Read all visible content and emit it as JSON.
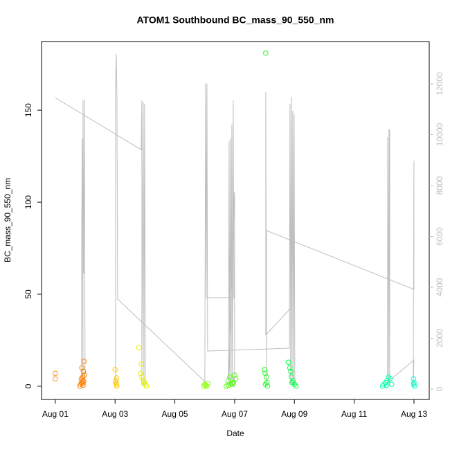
{
  "chart_data": {
    "type": "scatter",
    "title": "ATOM1 Southbound BC_mass_90_550_nm",
    "x_label": "Date",
    "y_label": "BC_mass_90_550_nm",
    "xlim": [
      -0.46,
      12.51
    ],
    "ylim": [
      -7.2,
      187.3
    ],
    "y2lim": [
      -408,
      13660
    ],
    "xticks": [
      {
        "value": 0,
        "label": "Aug 01"
      },
      {
        "value": 2,
        "label": "Aug 03"
      },
      {
        "value": 4,
        "label": "Aug 05"
      },
      {
        "value": 6,
        "label": "Aug 07"
      },
      {
        "value": 8,
        "label": "Aug 09"
      },
      {
        "value": 10,
        "label": "Aug 11"
      },
      {
        "value": 12,
        "label": "Aug 13"
      }
    ],
    "yticks": [
      0,
      50,
      100,
      150
    ],
    "y2ticks": [
      0,
      2000,
      4000,
      6000,
      8000,
      10000,
      12000
    ],
    "y2_tick_color": "#bebebe",
    "series": [
      {
        "color": "#ff8c1a",
        "x": [
          0,
          0
        ],
        "values": [
          7,
          4
        ]
      },
      {
        "color": "#ff8000",
        "x": [
          0.82,
          0.85,
          0.88,
          0.9,
          0.92,
          0.94,
          0.96,
          0.98,
          0.87,
          0.91,
          0.95,
          0.93,
          0.89
        ],
        "values": [
          0,
          1,
          2,
          3,
          5,
          8,
          13.5,
          6,
          4,
          1.5,
          2.5,
          0.5,
          10
        ]
      },
      {
        "color": "#ffcc00",
        "x": [
          2.0,
          2.02,
          2.04,
          2.06,
          2.03,
          2.05
        ],
        "values": [
          9,
          3,
          1,
          0,
          2,
          4.5
        ]
      },
      {
        "color": "#e6f000",
        "x": [
          2.8,
          2.85,
          2.9,
          2.95,
          3.0,
          3.05,
          2.88,
          2.98
        ],
        "values": [
          21,
          7,
          5,
          3,
          1,
          0,
          12,
          2
        ]
      },
      {
        "color": "#88ff00",
        "x": [
          4.97,
          5.0,
          5.03,
          5.06,
          5.1
        ],
        "values": [
          0,
          1,
          0.5,
          0,
          1.5
        ]
      },
      {
        "color": "#4cff00",
        "x": [
          5.72,
          5.78,
          5.84,
          5.9,
          5.96,
          6.0,
          6.04,
          5.8,
          5.93
        ],
        "values": [
          0,
          3,
          5,
          1,
          2,
          6,
          4,
          0.5,
          1.5
        ]
      },
      {
        "color": "#22ff22",
        "x": [
          7.04,
          7.0,
          7.02,
          7.06,
          7.08,
          7.1,
          7.03
        ],
        "values": [
          181,
          9,
          7,
          5,
          2,
          0,
          1
        ]
      },
      {
        "color": "#00ff44",
        "x": [
          7.8,
          7.85,
          7.88,
          7.9,
          7.95,
          8.0,
          8.05,
          7.92
        ],
        "values": [
          13,
          10,
          8,
          5,
          3,
          1,
          0,
          2
        ]
      },
      {
        "color": "#00ffaa",
        "x": [
          10.95,
          11.0,
          11.05,
          11.1,
          11.15,
          11.2,
          11.25,
          11.08
        ],
        "values": [
          0,
          1,
          2,
          3,
          5,
          4,
          1,
          0.5
        ]
      },
      {
        "color": "#00ffcc",
        "x": [
          11.98,
          12.0,
          12.02,
          11.99
        ],
        "values": [
          4,
          2,
          0,
          1
        ]
      },
      {
        "type": "line",
        "axis": "y2",
        "color": "#bebebe",
        "x": [
          0,
          2.872,
          2.896,
          2.896,
          2.942,
          2.965,
          2.988,
          3.011,
          null,
          0.88,
          0.88,
          0.903,
          0.927,
          0.927,
          0.95,
          0.973,
          0.996,
          null,
          2.015,
          2.015,
          2.038,
          2.062,
          2.085,
          5.05,
          null,
          5.003,
          5.027,
          5.05,
          5.073,
          5.096,
          7.829,
          7.853,
          7.876,
          7.899,
          7.922,
          7.946,
          7.969,
          7.992,
          8.015,
          null,
          5.05,
          5.976,
          5.953,
          5.93,
          5.907,
          5.884,
          5.861,
          5.837,
          5.814,
          5.791,
          5.999,
          5.999,
          null,
          7.042,
          7.042,
          7.065,
          7.065,
          11.999,
          11.999,
          11.976,
          11.999,
          11.119,
          11.119,
          11.142,
          11.165,
          11.188,
          11.188,
          null,
          7.042,
          7.876,
          7.899
        ],
        "values": [
          11450,
          9410,
          11350,
          160,
          11265,
          136,
          11211,
          160,
          null,
          190,
          5633,
          9850,
          190,
          11347,
          4544,
          11401,
          160,
          null,
          136,
          12082,
          13170,
          11483,
          3537,
          245,
          null,
          245,
          12027,
          3592,
          12000,
          1497,
          1605,
          11211,
          160,
          11483,
          190,
          10939,
          160,
          10803,
          109,
          null,
          3592,
          3592,
          11347,
          109,
          10394,
          160,
          9850,
          136,
          9769,
          160,
          7755,
          54,
          null,
          2122,
          11673,
          160,
          6231,
          3918,
          8980,
          54,
          1143,
          272,
          9905,
          190,
          10231,
          160,
          10204,
          null,
          2122,
          3184,
          11483
        ]
      }
    ]
  }
}
